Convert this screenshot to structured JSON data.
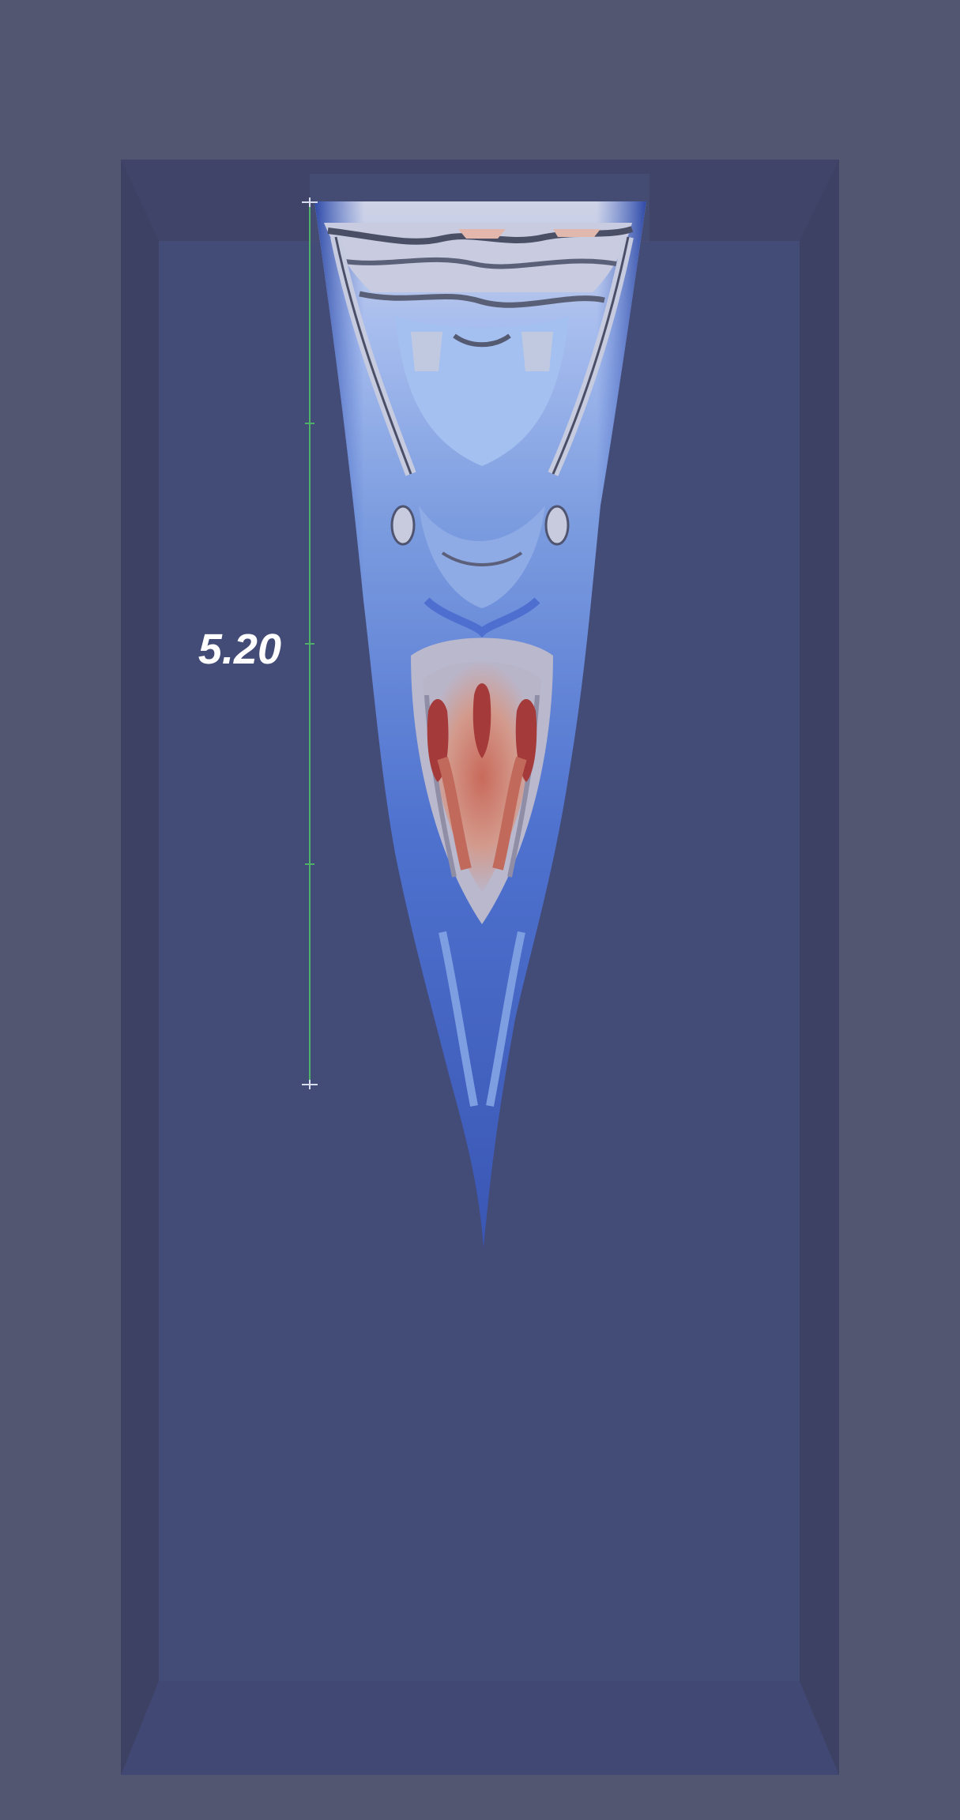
{
  "viewport": {
    "background_color": "#535670",
    "box_back_wall_color": "#434b77",
    "box_side_wall_color": "#3e4367",
    "box_floor_color": "#414873"
  },
  "ruler": {
    "label": "5.20",
    "color": "#4fb06a",
    "tick_color": "#d8dcef"
  },
  "isosurface": {
    "colormap": [
      "#3d59b8",
      "#5a7fd6",
      "#8fb0ec",
      "#c9cde0",
      "#d9a89a",
      "#c86a5a",
      "#a33a3a"
    ]
  }
}
